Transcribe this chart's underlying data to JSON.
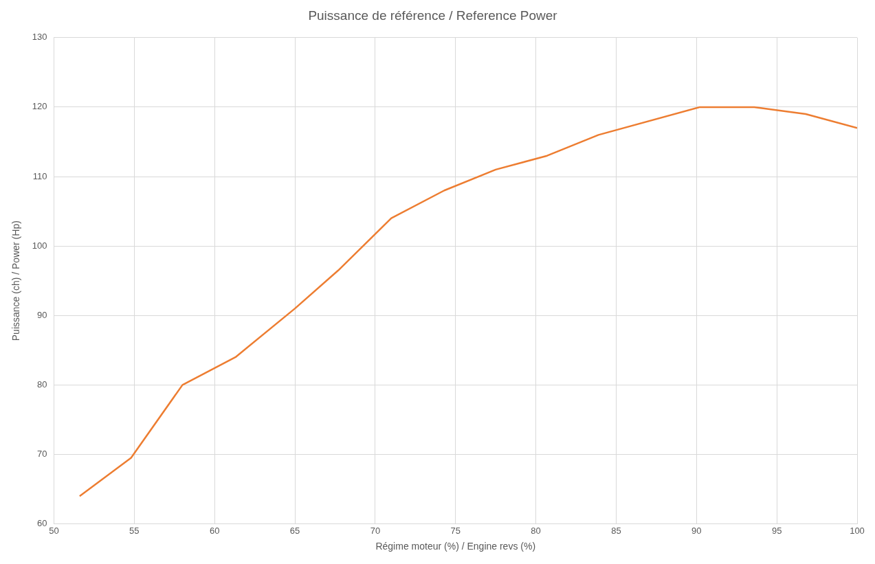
{
  "chart_data": {
    "type": "line",
    "title": "Puissance de référence / Reference Power",
    "xlabel": "Régime moteur (%) / Engine revs (%)",
    "ylabel": "Puissance (ch) / Power (Hp)",
    "x": [
      51.6,
      54.8,
      58,
      61.3,
      65,
      67.7,
      71,
      74.3,
      77.5,
      80.7,
      83.9,
      90.2,
      93.6,
      96.8,
      100
    ],
    "series": [
      {
        "color": "#ed7d31",
        "values": [
          64,
          69.5,
          80,
          84,
          91,
          96.5,
          104,
          108,
          111,
          113,
          116,
          120,
          120,
          119,
          117
        ]
      }
    ],
    "xlim": [
      50,
      100
    ],
    "xticks": [
      50,
      55,
      60,
      65,
      70,
      75,
      80,
      85,
      90,
      95,
      100
    ],
    "ylim": [
      60,
      130
    ],
    "yticks": [
      60,
      70,
      80,
      90,
      100,
      110,
      120,
      130
    ],
    "grid": true,
    "legend": false,
    "marker": "none",
    "line_style": "solid"
  }
}
